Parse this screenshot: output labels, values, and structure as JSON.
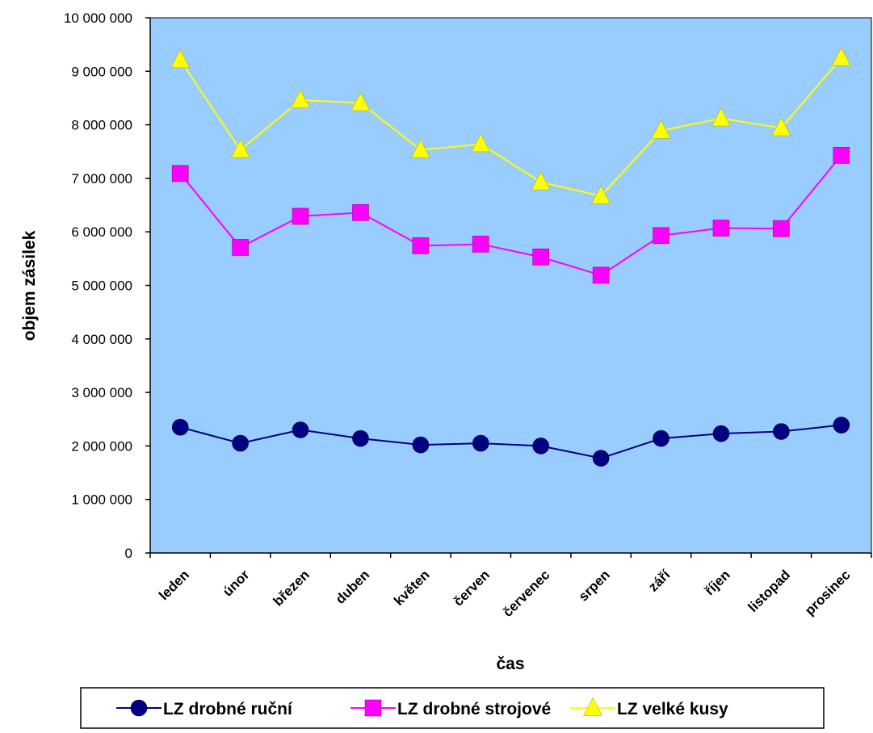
{
  "chart_data": {
    "type": "line",
    "categories": [
      "leden",
      "únor",
      "březen",
      "duben",
      "květen",
      "červen",
      "červenec",
      "srpen",
      "září",
      "říjen",
      "listopad",
      "prosinec"
    ],
    "series": [
      {
        "name": "LZ drobné ruční",
        "color": "#000080",
        "marker": "circle",
        "values": [
          2350000,
          2050000,
          2300000,
          2140000,
          2020000,
          2050000,
          2000000,
          1770000,
          2140000,
          2230000,
          2270000,
          2390000
        ]
      },
      {
        "name": "LZ drobné strojové",
        "color": "#FF00FF",
        "marker": "square",
        "values": [
          7090000,
          5710000,
          6290000,
          6360000,
          5740000,
          5770000,
          5530000,
          5190000,
          5930000,
          6070000,
          6060000,
          7430000
        ]
      },
      {
        "name": "LZ velké kusy",
        "color": "#FFFF00",
        "marker": "triangle",
        "values": [
          9210000,
          7530000,
          8460000,
          8410000,
          7530000,
          7640000,
          6930000,
          6670000,
          7890000,
          8120000,
          7940000,
          9250000
        ]
      }
    ],
    "ylim": [
      0,
      10000000
    ],
    "yticks": [
      0,
      1000000,
      2000000,
      3000000,
      4000000,
      5000000,
      6000000,
      7000000,
      8000000,
      9000000,
      10000000
    ],
    "ytick_labels": [
      "0",
      "1 000 000",
      "2 000 000",
      "3 000 000",
      "4 000 000",
      "5 000 000",
      "6 000 000",
      "7 000 000",
      "8 000 000",
      "9 000 000",
      "10 000 000"
    ],
    "xlabel": "čas",
    "ylabel": "objem zásilek",
    "plot_background": "#99CCFF",
    "grid": false,
    "legend_position": "bottom"
  }
}
